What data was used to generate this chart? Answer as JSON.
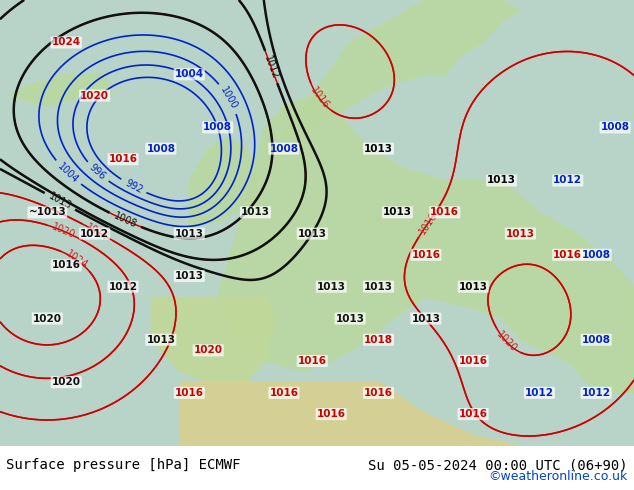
{
  "title_left": "Surface pressure [hPa] ECMWF",
  "title_right": "Su 05-05-2024 00:00 UTC (06+90)",
  "copyright": "©weatheronline.co.uk",
  "bg_color": "#a8d8a8",
  "land_color": "#c8e8b0",
  "sea_color": "#b0c8e0",
  "text_color_black": "#000000",
  "text_color_red": "#cc0000",
  "text_color_blue": "#0000cc",
  "footer_bg": "#e8e8e8",
  "figsize": [
    6.34,
    4.9
  ],
  "dpi": 100
}
